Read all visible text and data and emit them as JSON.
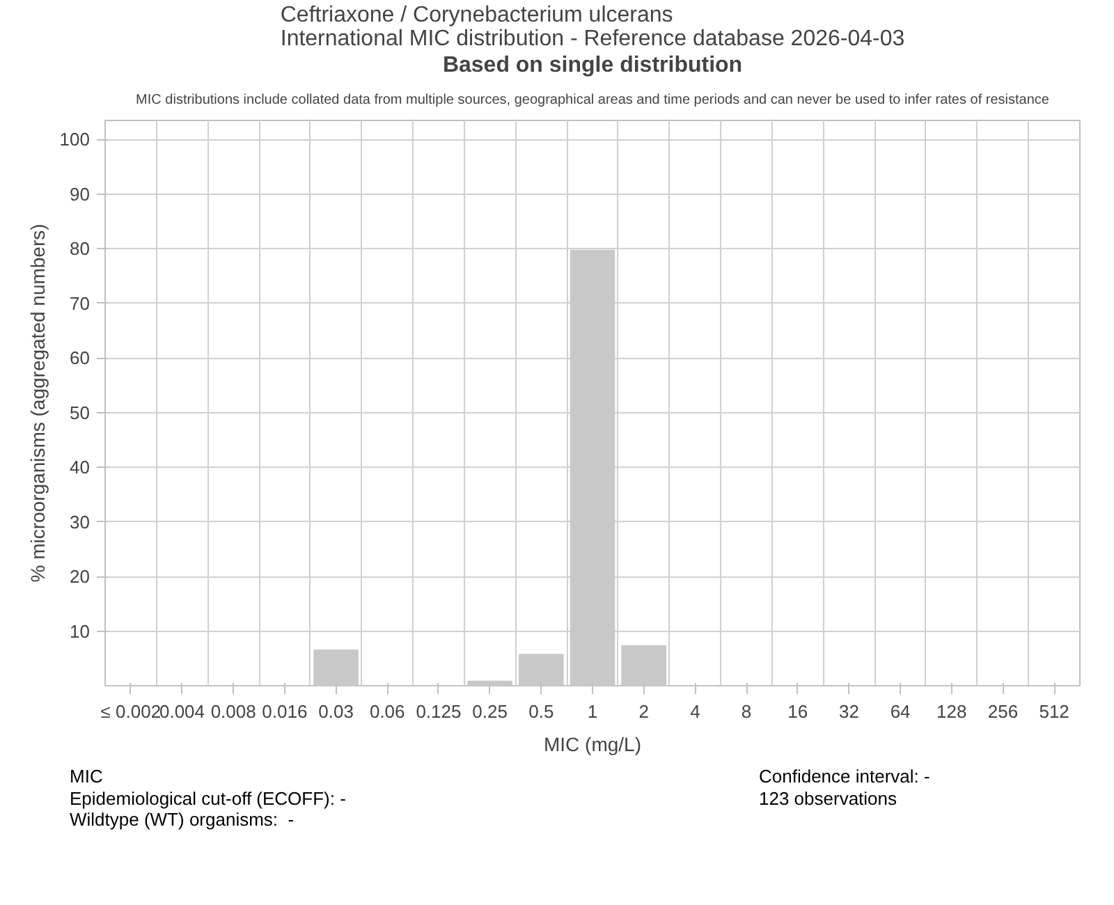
{
  "chart_data": {
    "type": "bar",
    "title": "Ceftriaxone / Corynebacterium ulcerans\nInternational MIC distribution - Reference database 2026-04-03",
    "subtitle": "Based on single distribution",
    "xlabel": "MIC (mg/L)",
    "ylabel": "% microorganisms (aggregated numbers)",
    "categories": [
      "≤ 0.002",
      "0.004",
      "0.008",
      "0.016",
      "0.03",
      "0.06",
      "0.125",
      "0.25",
      "0.5",
      "1",
      "2",
      "4",
      "8",
      "16",
      "32",
      "64",
      "128",
      "256",
      "512"
    ],
    "values": [
      0,
      0,
      0,
      0,
      6.5,
      0,
      0,
      0.8,
      5.7,
      79.7,
      7.3,
      0,
      0,
      0,
      0,
      0,
      0,
      0,
      0
    ],
    "color": "#c8c8c8",
    "ylim": [
      0,
      103.5
    ],
    "yticks": [
      10,
      20,
      30,
      40,
      50,
      60,
      70,
      80,
      90,
      100
    ],
    "grid": true,
    "annotations": [
      "MIC distributions include collated data from multiple sources, geographical areas and time periods and can never be used to infer rates of resistance",
      "MIC\nEpidemiological cut-off (ECOFF): -\nWildtype (WT) organisms:  -",
      "Confidence interval: -\n123 observations"
    ]
  }
}
